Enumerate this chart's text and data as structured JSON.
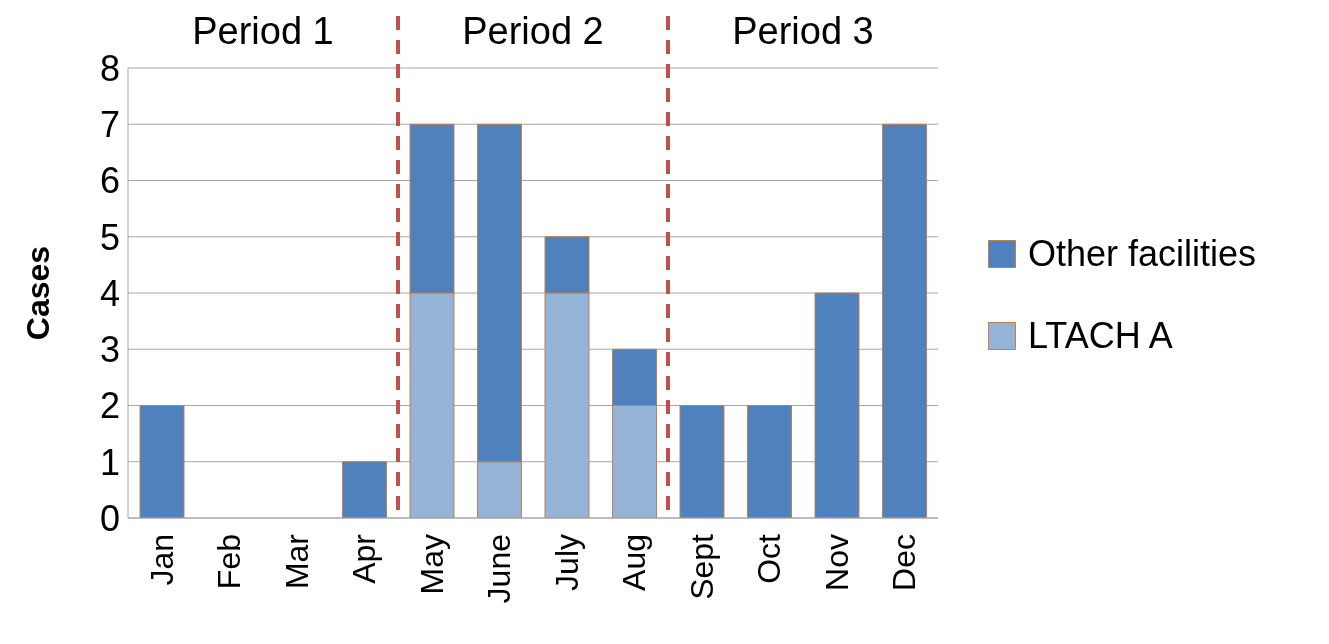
{
  "chart_data": {
    "type": "bar",
    "stacked": true,
    "ylabel": "Cases",
    "categories": [
      "Jan",
      "Feb",
      "Mar",
      "Apr",
      "May",
      "June",
      "July",
      "Aug",
      "Sept",
      "Oct",
      "Nov",
      "Dec"
    ],
    "series": [
      {
        "name": "LTACH A",
        "color": "#95b3d7",
        "values": [
          0,
          0,
          0,
          0,
          4,
          1,
          4,
          2,
          0,
          0,
          0,
          0
        ]
      },
      {
        "name": "Other facilities",
        "color": "#4f81bd",
        "values": [
          2,
          0,
          0,
          1,
          3,
          6,
          1,
          1,
          2,
          2,
          4,
          7
        ]
      }
    ],
    "ylim": [
      0,
      8
    ],
    "yticks": [
      0,
      1,
      2,
      3,
      4,
      5,
      6,
      7,
      8
    ],
    "grid": "y",
    "legend": "right",
    "annotations": [
      "Period 1",
      "Period 2",
      "Period 3"
    ]
  }
}
